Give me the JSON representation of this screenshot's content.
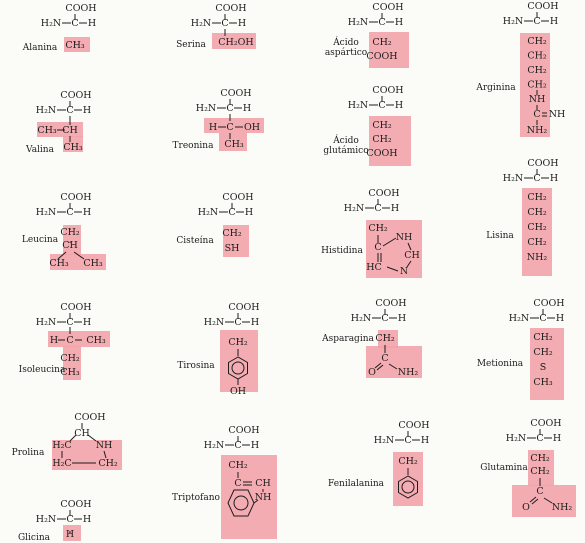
{
  "colors": {
    "side_chain_highlight": "#f2a3a8",
    "ink": "#1d1d1d",
    "paper": "#fbfbf8"
  },
  "labels": {
    "cooh": "COOH",
    "h2n": "H₂N",
    "c": "C",
    "h": "H",
    "nh": "NH",
    "ch3": "CH₃",
    "ch2": "CH₂",
    "ch": "CH",
    "oh": "OH",
    "sh": "SH",
    "s": "S",
    "o": "O",
    "nh2": "NH₂",
    "h2c": "H₂C",
    "hc": "HC",
    "n": "N",
    "ch2oh": "CH₂OH",
    "cooh_sc": "COOH"
  },
  "amino_acids": [
    {
      "key": "alanina",
      "name": "Alanina"
    },
    {
      "key": "serina",
      "name": "Serina"
    },
    {
      "key": "aspartico",
      "name_lines": [
        "Ácido",
        "aspártico"
      ]
    },
    {
      "key": "arginina",
      "name": "Arginina"
    },
    {
      "key": "valina",
      "name": "Valina"
    },
    {
      "key": "treonina",
      "name": "Treonina"
    },
    {
      "key": "glutamico",
      "name_lines": [
        "Ácido",
        "glutámico"
      ]
    },
    {
      "key": "leucina",
      "name": "Leucina"
    },
    {
      "key": "cisteina",
      "name": "Cisteína"
    },
    {
      "key": "histidina",
      "name": "Histidina"
    },
    {
      "key": "lisina",
      "name": "Lisina"
    },
    {
      "key": "isoleucina",
      "name": "Isoleucina"
    },
    {
      "key": "tirosina",
      "name": "Tirosina"
    },
    {
      "key": "asparagina",
      "name": "Asparagina"
    },
    {
      "key": "metionina",
      "name": "Metionina"
    },
    {
      "key": "prolina",
      "name": "Prolina"
    },
    {
      "key": "triptofano",
      "name": "Triptofano"
    },
    {
      "key": "fenilalanina",
      "name": "Fenilalanina"
    },
    {
      "key": "glutamina",
      "name": "Glutamina"
    },
    {
      "key": "glicina",
      "name": "Glicina"
    }
  ]
}
